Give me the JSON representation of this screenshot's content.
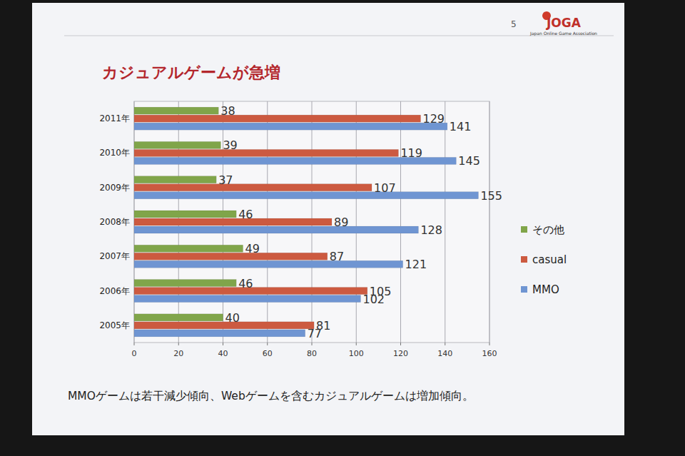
{
  "chart_data": {
    "type": "bar",
    "orientation": "horizontal",
    "title": "カジュアルゲームが急増",
    "categories": [
      "2005年",
      "2006年",
      "2007年",
      "2008年",
      "2009年",
      "2010年",
      "2011年"
    ],
    "series": [
      {
        "name": "その他",
        "color": "#80a54a",
        "values": [
          40,
          46,
          49,
          46,
          37,
          39,
          38
        ]
      },
      {
        "name": "casual",
        "color": "#cc5a40",
        "values": [
          81,
          105,
          87,
          89,
          107,
          119,
          129
        ]
      },
      {
        "name": "MMO",
        "color": "#6f95d2",
        "values": [
          77,
          102,
          121,
          128,
          155,
          145,
          141
        ]
      }
    ],
    "xlim": [
      0,
      160
    ],
    "xticks": [
      0,
      20,
      40,
      60,
      80,
      100,
      120,
      140,
      160
    ],
    "grid": true,
    "legend": "right",
    "data_labels": true,
    "annotations": [
      "MMOゲームは若干減少傾向、Webゲームを含むカジュアルゲームは増加傾向。"
    ]
  },
  "slide": {
    "number": "5",
    "logo": "JOGA",
    "organization": "Japan Online Game Association"
  }
}
